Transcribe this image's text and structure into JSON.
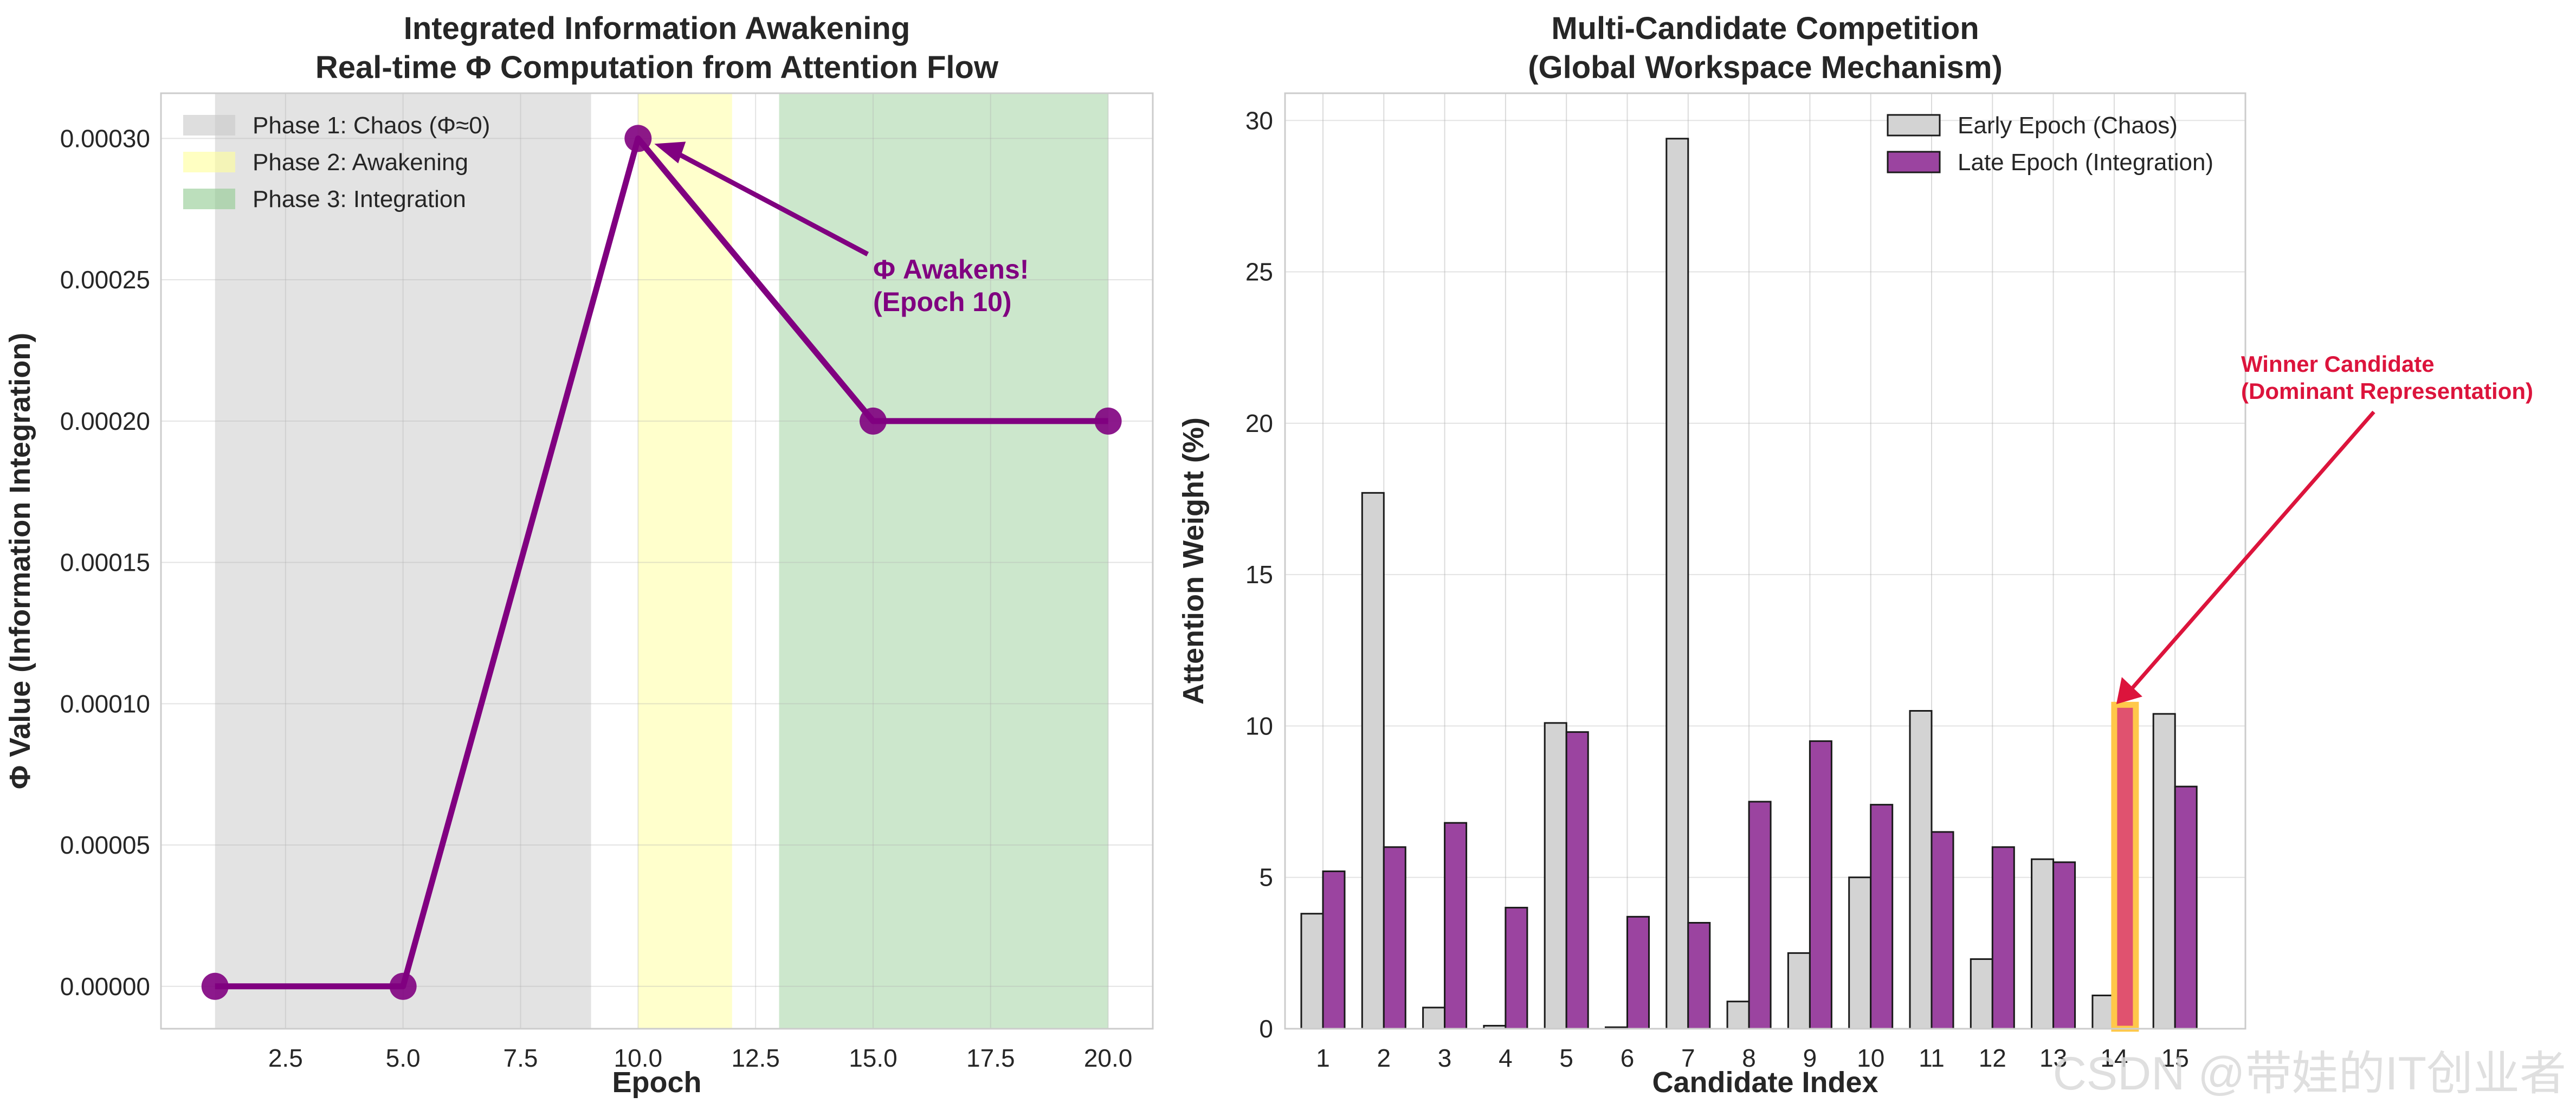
{
  "chart_data": [
    {
      "type": "line",
      "title": "Integrated Information Awakening\nReal-time Φ Computation from Attention Flow",
      "xlabel": "Epoch",
      "ylabel": "Φ Value (Information Integration)",
      "xlim": [
        -0.15,
        20.95
      ],
      "ylim": [
        -1.5e-05,
        0.000316
      ],
      "xticks": [
        "2.5",
        "5.0",
        "7.5",
        "10.0",
        "12.5",
        "15.0",
        "17.5",
        "20.0"
      ],
      "xtick_values": [
        2.5,
        5.0,
        7.5,
        10.0,
        12.5,
        15.0,
        17.5,
        20.0
      ],
      "yticks": [
        "0.00000",
        "0.00005",
        "0.00010",
        "0.00015",
        "0.00020",
        "0.00025",
        "0.00030"
      ],
      "ytick_values": [
        0,
        5e-05,
        0.0001,
        0.00015,
        0.0002,
        0.00025,
        0.0003
      ],
      "grid": true,
      "legend_position": "upper-left",
      "series": [
        {
          "x": [
            1,
            5,
            10,
            15,
            20
          ],
          "values": [
            0,
            0,
            0.0003,
            0.0002,
            0.0002
          ],
          "color": "#800080"
        }
      ],
      "phases": [
        {
          "name": "Phase 1: Chaos (Φ≈0)",
          "range": [
            1,
            9
          ],
          "color": "#c8c8c8"
        },
        {
          "name": "Phase 2: Awakening",
          "range": [
            10,
            12
          ],
          "color": "#ffff99"
        },
        {
          "name": "Phase 3: Integration",
          "range": [
            13,
            20
          ],
          "color": "#8fc98f"
        }
      ],
      "annotation": {
        "text_lines": [
          "Φ Awakens!",
          "(Epoch 10)"
        ],
        "point": [
          10,
          0.0003
        ],
        "text_at": [
          15,
          0.00026
        ],
        "color": "#800080"
      }
    },
    {
      "type": "bar",
      "title": "Multi-Candidate Competition\n(Global Workspace Mechanism)",
      "xlabel": "Candidate Index",
      "ylabel": "Attention Weight (%)",
      "categories": [
        "1",
        "2",
        "3",
        "4",
        "5",
        "6",
        "7",
        "8",
        "9",
        "10",
        "11",
        "12",
        "13",
        "14",
        "15"
      ],
      "ylim": [
        0,
        30.9
      ],
      "yticks": [
        "0",
        "5",
        "10",
        "15",
        "20",
        "25",
        "30"
      ],
      "ytick_values": [
        0,
        5,
        10,
        15,
        20,
        25,
        30
      ],
      "grid": true,
      "legend_position": "upper-right",
      "series": [
        {
          "name": "Early Epoch (Chaos)",
          "values": [
            3.8,
            17.7,
            0.7,
            0.1,
            10.1,
            0.05,
            29.4,
            0.9,
            2.5,
            5.0,
            10.5,
            2.3,
            5.6,
            1.1,
            10.4
          ],
          "color": "#d3d3d3"
        },
        {
          "name": "Late Epoch (Integration)",
          "values": [
            5.2,
            6.0,
            6.8,
            4.0,
            9.8,
            3.7,
            3.5,
            7.5,
            9.5,
            7.4,
            6.5,
            6.0,
            5.5,
            10.7,
            8.0
          ],
          "color": "#9b44a0"
        }
      ],
      "highlight": {
        "category": "14",
        "series": "Late Epoch (Integration)",
        "edge_color": "#ffc84a",
        "fill": "#e0526f"
      },
      "annotation": {
        "text_lines": [
          "Winner Candidate",
          "(Dominant Representation)"
        ],
        "point_category": "14",
        "point_value": 10.9,
        "color": "#dc143c"
      }
    }
  ],
  "watermark": "CSDN @带娃的IT创业者"
}
